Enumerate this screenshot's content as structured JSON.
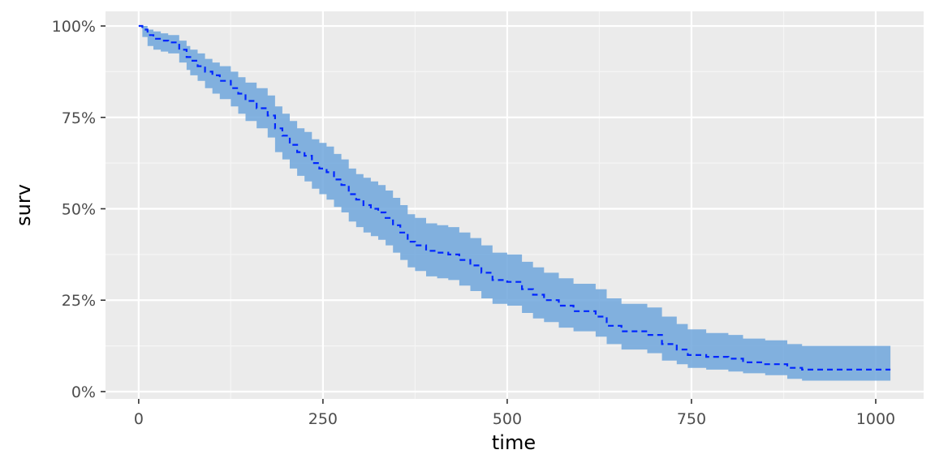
{
  "chart_data": {
    "type": "line",
    "xlabel": "time",
    "ylabel": "surv",
    "xlim": [
      -45,
      1065
    ],
    "ylim": [
      -0.02,
      1.04
    ],
    "x_ticks": [
      0,
      250,
      500,
      750,
      1000
    ],
    "x_tick_labels": [
      "0",
      "250",
      "500",
      "750",
      "1000"
    ],
    "y_ticks": [
      0,
      0.25,
      0.5,
      0.75,
      1.0
    ],
    "y_tick_labels": [
      "0%",
      "25%",
      "50%",
      "75%",
      "100%"
    ],
    "grid": true,
    "colors": {
      "panel_background": "#ebebeb",
      "grid_major": "#ffffff",
      "grid_minor": "#f5f5f5",
      "confidence_band": "#6fa6dc",
      "survival_line": "#0026ff",
      "tick_mark": "#333333"
    },
    "series": [
      {
        "x": [
          0,
          5,
          12,
          20,
          30,
          40,
          55,
          65,
          70,
          80,
          90,
          100,
          110,
          125,
          135,
          145,
          160,
          175,
          185,
          195,
          205,
          215,
          225,
          235,
          245,
          255,
          265,
          275,
          285,
          295,
          305,
          315,
          325,
          335,
          345,
          355,
          365,
          375,
          390,
          405,
          420,
          435,
          450,
          465,
          480,
          500,
          520,
          535,
          550,
          570,
          590,
          620,
          635,
          655,
          690,
          710,
          730,
          745,
          770,
          800,
          820,
          850,
          880,
          900,
          950,
          1000,
          1020
        ],
        "surv": [
          1.0,
          0.99,
          0.975,
          0.965,
          0.96,
          0.955,
          0.935,
          0.915,
          0.905,
          0.89,
          0.875,
          0.865,
          0.85,
          0.83,
          0.815,
          0.795,
          0.775,
          0.755,
          0.72,
          0.7,
          0.675,
          0.655,
          0.645,
          0.625,
          0.61,
          0.6,
          0.58,
          0.565,
          0.54,
          0.525,
          0.51,
          0.5,
          0.49,
          0.475,
          0.455,
          0.435,
          0.41,
          0.4,
          0.385,
          0.38,
          0.375,
          0.36,
          0.345,
          0.325,
          0.305,
          0.3,
          0.28,
          0.265,
          0.25,
          0.235,
          0.22,
          0.205,
          0.18,
          0.165,
          0.155,
          0.13,
          0.115,
          0.1,
          0.095,
          0.09,
          0.08,
          0.075,
          0.065,
          0.06,
          0.06,
          0.06,
          0.06
        ],
        "lower": [
          1.0,
          0.97,
          0.945,
          0.935,
          0.93,
          0.925,
          0.9,
          0.88,
          0.865,
          0.85,
          0.83,
          0.815,
          0.8,
          0.78,
          0.76,
          0.74,
          0.72,
          0.695,
          0.655,
          0.635,
          0.61,
          0.59,
          0.575,
          0.555,
          0.54,
          0.525,
          0.505,
          0.49,
          0.465,
          0.45,
          0.435,
          0.425,
          0.415,
          0.4,
          0.38,
          0.36,
          0.34,
          0.33,
          0.315,
          0.31,
          0.305,
          0.29,
          0.275,
          0.255,
          0.24,
          0.235,
          0.215,
          0.2,
          0.19,
          0.175,
          0.165,
          0.15,
          0.13,
          0.115,
          0.105,
          0.085,
          0.075,
          0.065,
          0.06,
          0.055,
          0.05,
          0.045,
          0.035,
          0.03,
          0.03,
          0.03,
          0.03
        ],
        "upper": [
          1.0,
          1.0,
          0.99,
          0.985,
          0.98,
          0.975,
          0.96,
          0.945,
          0.935,
          0.925,
          0.91,
          0.9,
          0.89,
          0.875,
          0.86,
          0.845,
          0.83,
          0.81,
          0.78,
          0.76,
          0.74,
          0.72,
          0.71,
          0.69,
          0.68,
          0.67,
          0.65,
          0.635,
          0.61,
          0.595,
          0.585,
          0.575,
          0.565,
          0.55,
          0.53,
          0.51,
          0.485,
          0.475,
          0.46,
          0.455,
          0.45,
          0.435,
          0.42,
          0.4,
          0.38,
          0.375,
          0.355,
          0.34,
          0.325,
          0.31,
          0.295,
          0.28,
          0.255,
          0.24,
          0.23,
          0.205,
          0.185,
          0.17,
          0.16,
          0.155,
          0.145,
          0.14,
          0.13,
          0.125,
          0.125,
          0.125,
          0.125
        ]
      }
    ]
  }
}
